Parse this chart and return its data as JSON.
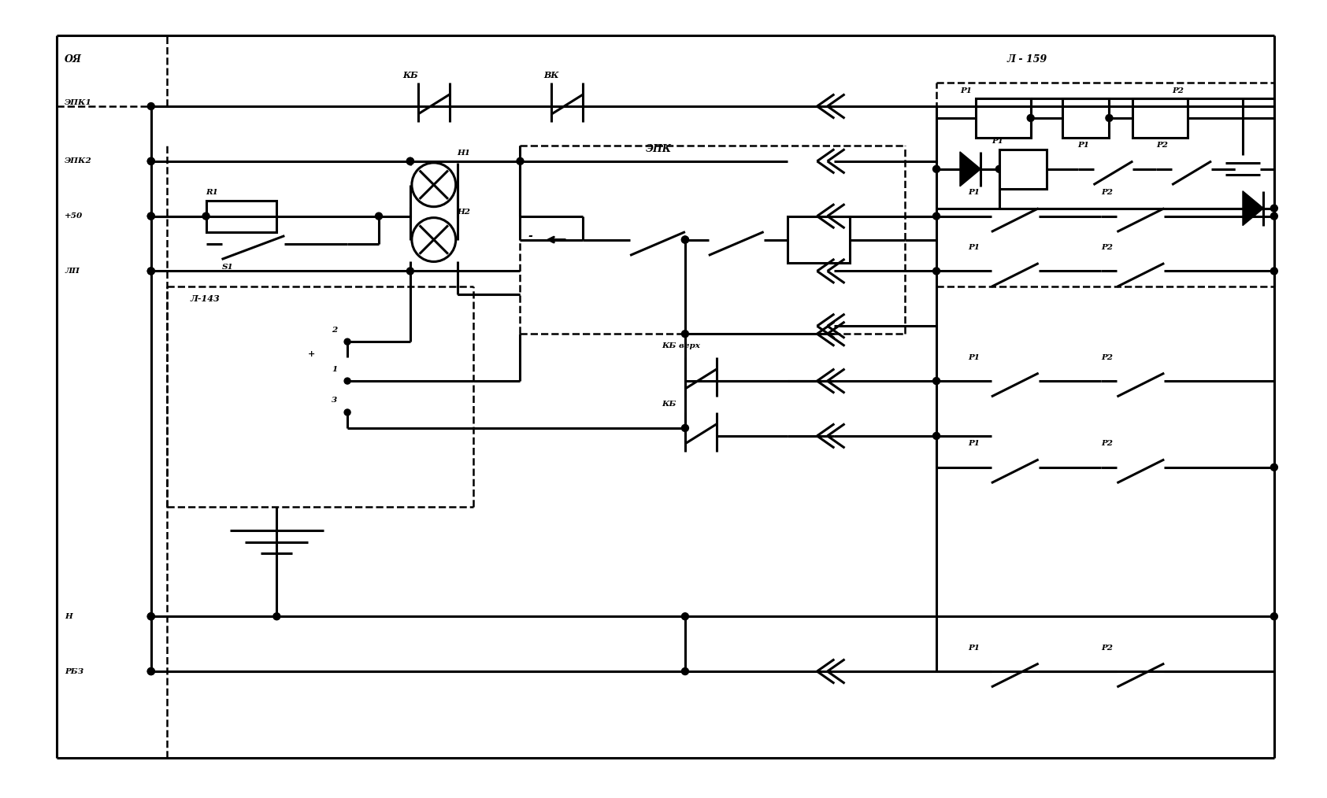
{
  "bg_color": "#ffffff",
  "line_color": "#000000",
  "lw": 1.8,
  "lw_thick": 2.2,
  "fig_width": 16.85,
  "fig_height": 10.14,
  "labels": {
    "OYa": "ОЯ",
    "EPK1": "ЭПК1",
    "EPK2": "ЭПК2",
    "plus50": "+50",
    "LP": "ЛП",
    "N": "Н",
    "RBZ": "РБЗ",
    "KB": "КБ",
    "VK": "ВК",
    "EPK": "ЭПК",
    "L143": "Л-143",
    "L159": "Л - 159",
    "R1_label": "R1",
    "S1_label": "S1",
    "H1_label": "Н1",
    "H2_label": "Н2",
    "P1": "Р1",
    "P2": "Р2",
    "KB_verh": "КБ верх",
    "minus": "-",
    "num2": "2",
    "num1": "1",
    "num3": "3",
    "plus": "+"
  }
}
